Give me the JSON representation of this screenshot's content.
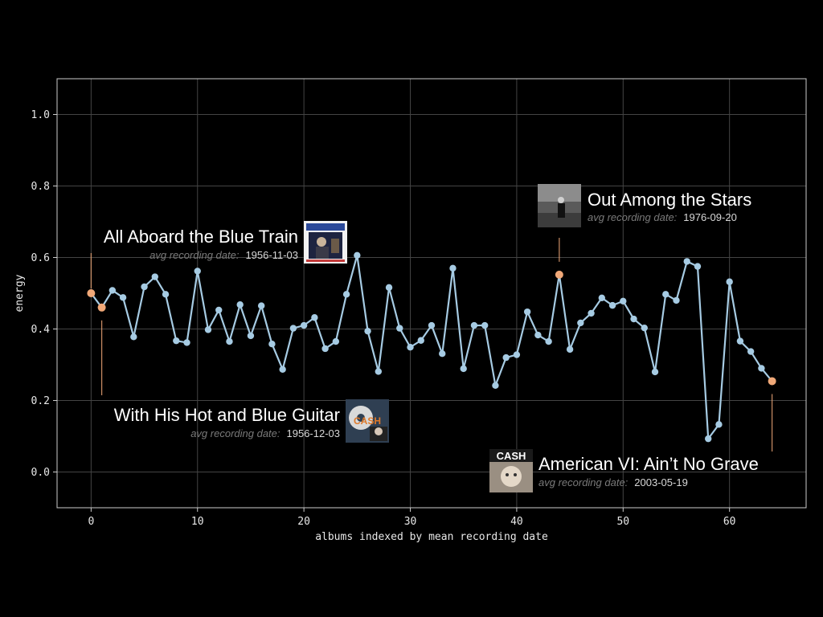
{
  "chart_data": {
    "type": "line",
    "xlabel": "albums indexed by mean recording date",
    "ylabel": "energy",
    "xlim": [
      -3.2,
      67.2
    ],
    "ylim": [
      -0.1,
      1.1
    ],
    "x_ticks": [
      0,
      10,
      20,
      30,
      40,
      50,
      60
    ],
    "y_ticks": [
      0.0,
      0.2,
      0.4,
      0.6,
      0.8,
      1.0
    ],
    "y_tick_labels": [
      "0.0",
      "0.2",
      "0.4",
      "0.6",
      "0.8",
      "1.0"
    ],
    "grid": true,
    "line_color": "#a6cbe3",
    "highlight_color": "#f0a878",
    "frame_color": "#cccccc",
    "grid_color": "#444444",
    "series": [
      {
        "values": [
          0.5,
          0.46,
          0.508,
          0.488,
          0.378,
          0.518,
          0.546,
          0.497,
          0.367,
          0.362,
          0.562,
          0.398,
          0.453,
          0.365,
          0.468,
          0.381,
          0.465,
          0.358,
          0.287,
          0.402,
          0.41,
          0.432,
          0.345,
          0.365,
          0.497,
          0.606,
          0.394,
          0.281,
          0.516,
          0.402,
          0.349,
          0.368,
          0.41,
          0.331,
          0.57,
          0.289,
          0.41,
          0.41,
          0.242,
          0.32,
          0.328,
          0.448,
          0.383,
          0.365,
          0.552,
          0.343,
          0.417,
          0.444,
          0.487,
          0.466,
          0.478,
          0.428,
          0.403,
          0.28,
          0.497,
          0.48,
          0.589,
          0.575,
          0.093,
          0.133,
          0.532,
          0.366,
          0.337,
          0.29,
          0.254
        ]
      }
    ],
    "annotations": [
      {
        "index": 0,
        "title": "All Aboard the Blue Train",
        "subtitle_prefix": "avg recording date:",
        "date": "1956-11-03",
        "cover": "blue-train-cover"
      },
      {
        "index": 1,
        "title": "With His Hot and Blue Guitar",
        "subtitle_prefix": "avg recording date:",
        "date": "1956-12-03",
        "cover": "hot-blue-guitar-cover"
      },
      {
        "index": 44,
        "title": "Out Among the Stars",
        "subtitle_prefix": "avg recording date:",
        "date": "1976-09-20",
        "cover": "out-among-stars-cover"
      },
      {
        "index": 64,
        "title": "American VI: Ain’t No Grave",
        "subtitle_prefix": "avg recording date:",
        "date": "2003-05-19",
        "cover": "american-vi-cover",
        "cover_text": "CASH"
      }
    ],
    "hot_blue_cover_text": "CASH"
  }
}
